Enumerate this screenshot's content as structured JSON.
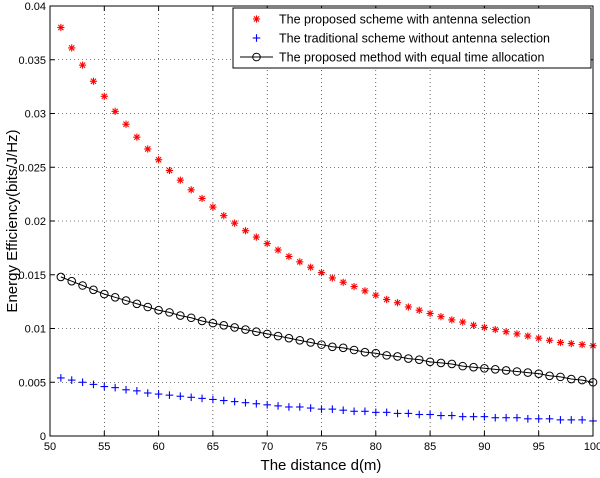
{
  "chart_data": {
    "type": "scatter",
    "title": "",
    "xlabel": "The distance d(m)",
    "ylabel": "Energy Efficiency(bits/J/Hz)",
    "xlim": [
      50,
      100
    ],
    "ylim": [
      0,
      0.04
    ],
    "xticks": [
      "50",
      "55",
      "60",
      "65",
      "70",
      "75",
      "80",
      "85",
      "90",
      "95",
      "100"
    ],
    "yticks": [
      "0",
      "0.005",
      "0.01",
      "0.015",
      "0.02",
      "0.025",
      "0.03",
      "0.035",
      "0.04"
    ],
    "grid": true,
    "legend_position": "top-right",
    "x": [
      51,
      52,
      53,
      54,
      55,
      56,
      57,
      58,
      59,
      60,
      61,
      62,
      63,
      64,
      65,
      66,
      67,
      68,
      69,
      70,
      71,
      72,
      73,
      74,
      75,
      76,
      77,
      78,
      79,
      80,
      81,
      82,
      83,
      84,
      85,
      86,
      87,
      88,
      89,
      90,
      91,
      92,
      93,
      94,
      95,
      96,
      97,
      98,
      99,
      100
    ],
    "series": [
      {
        "name": "The proposed scheme with antenna selection",
        "marker": "asterisk",
        "color": "#ff0000",
        "values": [
          0.038,
          0.0361,
          0.0345,
          0.033,
          0.0316,
          0.0302,
          0.029,
          0.0278,
          0.0267,
          0.0257,
          0.0247,
          0.0238,
          0.0229,
          0.0221,
          0.0213,
          0.0205,
          0.0198,
          0.0191,
          0.0185,
          0.0179,
          0.0173,
          0.0167,
          0.0162,
          0.0157,
          0.0152,
          0.0147,
          0.0143,
          0.0139,
          0.0135,
          0.0131,
          0.0127,
          0.0124,
          0.012,
          0.0117,
          0.0114,
          0.0111,
          0.0108,
          0.0106,
          0.0103,
          0.0101,
          0.0099,
          0.0097,
          0.0095,
          0.0093,
          0.0091,
          0.0089,
          0.0087,
          0.0086,
          0.0085,
          0.0084
        ]
      },
      {
        "name": "The traditional scheme without antenna selection",
        "marker": "plus",
        "color": "#0000ff",
        "values": [
          0.0054,
          0.0052,
          0.005,
          0.0048,
          0.0046,
          0.0045,
          0.0043,
          0.0042,
          0.004,
          0.0039,
          0.0038,
          0.0037,
          0.0036,
          0.0035,
          0.0034,
          0.0033,
          0.0032,
          0.0031,
          0.003,
          0.0029,
          0.0028,
          0.0027,
          0.0027,
          0.0026,
          0.0025,
          0.0025,
          0.0024,
          0.0023,
          0.0023,
          0.0022,
          0.0022,
          0.0021,
          0.0021,
          0.002,
          0.002,
          0.0019,
          0.0019,
          0.0018,
          0.0018,
          0.0018,
          0.0017,
          0.0017,
          0.0017,
          0.0016,
          0.0016,
          0.0016,
          0.0015,
          0.0015,
          0.0015,
          0.0014
        ]
      },
      {
        "name": "The proposed method with equal time allocation",
        "marker": "circle-line",
        "color": "#000000",
        "values": [
          0.0148,
          0.0144,
          0.014,
          0.0136,
          0.0132,
          0.0129,
          0.0126,
          0.0123,
          0.012,
          0.0117,
          0.0115,
          0.0112,
          0.011,
          0.0107,
          0.0105,
          0.0103,
          0.0101,
          0.0099,
          0.0097,
          0.0095,
          0.0093,
          0.0091,
          0.0089,
          0.0087,
          0.0085,
          0.0083,
          0.0082,
          0.008,
          0.0078,
          0.0077,
          0.0075,
          0.0074,
          0.0072,
          0.0071,
          0.0069,
          0.0068,
          0.0067,
          0.0065,
          0.0064,
          0.0063,
          0.0062,
          0.0061,
          0.006,
          0.0059,
          0.0058,
          0.0056,
          0.0055,
          0.0053,
          0.0052,
          0.005
        ]
      }
    ]
  }
}
